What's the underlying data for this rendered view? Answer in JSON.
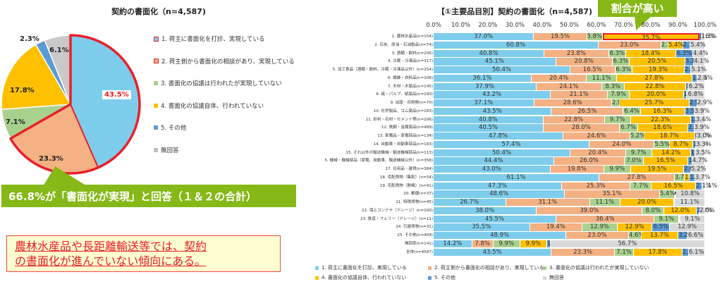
{
  "colors": {
    "c1": "#7ecdec",
    "c2": "#f4b183",
    "c3": "#a9d18e",
    "c4": "#ffc000",
    "c5": "#5b9bd5",
    "c6": "#d9d9d9",
    "highlight": "#e8202a",
    "callout": "#86b817"
  },
  "pie": {
    "title": "契約の書面化（n=4,587)",
    "legend": [
      {
        "label": "1. 荷主に書面化を打診、実現している",
        "color": "#7ecdec"
      },
      {
        "label": "2. 荷主側から書面化の相談があり、実現している",
        "color": "#f4b183"
      },
      {
        "label": "3. 書面化の協議は行われたが実現していない",
        "color": "#a9d18e"
      },
      {
        "label": "4. 書面化の協議自体、行われていない",
        "color": "#ffc000"
      },
      {
        "label": "5. その他",
        "color": "#5b9bd5"
      },
      {
        "label": "無回答",
        "color": "#bfbfbf"
      }
    ],
    "labels": {
      "s1": "43.5%",
      "s2": "23.3%",
      "s3": "7.1%",
      "s4": "17.8%",
      "s5": "2.3%",
      "s6": "6.1%"
    },
    "callout": "66.8%が「書面化が実現」と回答（１＆２の合計）"
  },
  "note": {
    "line1": "農林水産品や長距離輸送等では、契約",
    "line2": "の書面化が進んでいない傾向にある。"
  },
  "bar": {
    "title": "【①主要品目別】契約の書面化（n=4,587)",
    "callout": "割合が高い",
    "ticks": [
      "0.0%",
      "10.0%",
      "20.0%",
      "30.0%",
      "40.0%",
      "50.0%",
      "60.0%",
      "70.0%",
      "80.0%",
      "90.0%",
      "100.0%"
    ],
    "legend": [
      {
        "label": "1. 荷主に書面化を打診、実現している",
        "color": "#7ecdec"
      },
      {
        "label": "2. 荷主側から書面化の相談があり、実現している",
        "color": "#f4b183"
      },
      {
        "label": "3. 書面化の協議は行われたが実現していない",
        "color": "#a9d18e"
      },
      {
        "label": "4. 書面化の協議自体、行われていない",
        "color": "#ffc000"
      },
      {
        "label": "5. その他",
        "color": "#5b9bd5"
      },
      {
        "label": "無回答",
        "color": "#d9d9d9"
      }
    ]
  },
  "chart_data": [
    {
      "type": "pie",
      "title": "契約の書面化（n=4,587)",
      "categories": [
        "1. 荷主に書面化を打診、実現している",
        "2. 荷主側から書面化の相談があり、実現している",
        "3. 書面化の協議は行われたが実現していない",
        "4. 書面化の協議自体、行われていない",
        "5. その他",
        "無回答"
      ],
      "values": [
        43.5,
        23.3,
        7.1,
        17.8,
        2.3,
        6.1
      ],
      "annotations": [
        "66.8%が「書面化が実現」と回答（１＆２の合計）"
      ],
      "legend_position": "right"
    },
    {
      "type": "bar",
      "orientation": "horizontal",
      "stacked": true,
      "title": "【①主要品目別】契約の書面化（n=4,587)",
      "xlim": [
        0,
        100
      ],
      "xticks": [
        "0.0%",
        "10.0%",
        "20.0%",
        "30.0%",
        "40.0%",
        "50.0%",
        "60.0%",
        "70.0%",
        "80.0%",
        "90.0%",
        "100.0%"
      ],
      "legend_position": "bottom",
      "annotations": [
        "割合が高い"
      ],
      "categories": [
        "1. 農林水産品(n=154)",
        "2. 石炭、原油・石油製品(n=74)",
        "3. 酒類・飲料(n=206)",
        "4. 冷蔵・冷凍品(n=317)",
        "5. 加工食品（酒類・飲料、冷蔵・冷凍品以外）(n=254)",
        "6. 繊維・衣料品(n=108)",
        "7. 木材・木製品(n=145)",
        "8. 紙・パルプ、紙製品(n=190)",
        "9. 出版・印刷物(n=70)",
        "10. 化学製品、ゴム製品(n=283)",
        "11. 砂利・石材・セメント等(n=206)",
        "12. 鉄鋼・金属製品(n=489)",
        "13. 家電品・家電部品(n=134)",
        "14. 自動車・自動車部品(n=183)",
        "15. それ以外の輸送機械・輸送機械部品(n=113)",
        "5. 機械・機械部品（家電、自動車、輸送機械以外）(n=358)",
        "17. 日用品・雑貨(n=384)",
        "18. 宅配貨物（集配）(n=54)",
        "19. 宅配貨物（幹線）(n=91)",
        "20. 郵便(n=37)",
        "21. 特積貨物(n=45)",
        "22. 海上コンテナ（ドレージ）(n=100)",
        "23. 鉄道・フェリー（ドレージ）(n=11)",
        "24. 引越貨物(n=31)",
        "25. その他(n=409)",
        "無回答(n=141)",
        "全体(n=4587)"
      ],
      "series": [
        {
          "name": "1. 荷主に書面化を打診、実現している",
          "values": [
            37.0,
            60.8,
            40.8,
            45.1,
            50.4,
            36.1,
            37.9,
            43.2,
            37.1,
            43.5,
            40.8,
            40.5,
            47.8,
            57.4,
            50.4,
            44.4,
            43.0,
            61.1,
            47.3,
            48.6,
            26.7,
            38.0,
            45.5,
            35.5,
            48.9,
            14.2,
            43.5
          ]
        },
        {
          "name": "2. 荷主側から書面化の相談があり、実現している",
          "values": [
            19.5,
            23.0,
            23.8,
            20.8,
            16.5,
            20.4,
            24.1,
            21.1,
            28.6,
            26.5,
            22.8,
            28.0,
            24.6,
            24.0,
            20.4,
            26.0,
            19.8,
            27.8,
            25.3,
            35.1,
            31.1,
            39.0,
            36.4,
            19.4,
            23.0,
            7.8,
            23.3
          ]
        },
        {
          "name": "3. 書面化の協議は行われたが実現していない",
          "values": [
            5.8,
            2.7,
            6.3,
            6.3,
            6.3,
            11.1,
            8.3,
            7.9,
            2.9,
            6.4,
            9.7,
            6.7,
            5.2,
            5.5,
            9.7,
            7.0,
            9.9,
            3.7,
            7.7,
            5.4,
            11.1,
            8.0,
            9.1,
            12.9,
            4.6,
            9.9,
            7.1
          ]
        },
        {
          "name": "4. 書面化の協議自体、行われていない",
          "values": [
            35.7,
            5.4,
            18.4,
            20.5,
            19.3,
            27.8,
            22.8,
            20.0,
            25.7,
            16.3,
            22.3,
            18.6,
            18.7,
            8.7,
            14.2,
            16.5,
            19.5,
            1.9,
            16.5,
            0.0,
            20.0,
            12.0,
            0.0,
            12.9,
            13.7,
            9.9,
            17.8
          ]
        },
        {
          "name": "5. その他",
          "values": [
            0.6,
            2.7,
            6.3,
            3.2,
            2.4,
            1.9,
            0.7,
            1.1,
            2.9,
            3.5,
            1.9,
            2.2,
            0.7,
            1.1,
            1.8,
            1.4,
            2.6,
            1.9,
            2.2,
            0.0,
            0.0,
            1.0,
            0.0,
            6.5,
            3.2,
            1.4,
            2.3
          ]
        },
        {
          "name": "無回答",
          "values": [
            1.3,
            5.4,
            4.4,
            4.1,
            5.1,
            2.8,
            6.2,
            6.8,
            2.9,
            3.9,
            3.4,
            3.9,
            3.0,
            3.3,
            3.5,
            4.7,
            5.2,
            3.7,
            1.1,
            10.8,
            11.1,
            2.0,
            9.1,
            12.9,
            6.6,
            56.7,
            6.1
          ]
        }
      ]
    }
  ]
}
